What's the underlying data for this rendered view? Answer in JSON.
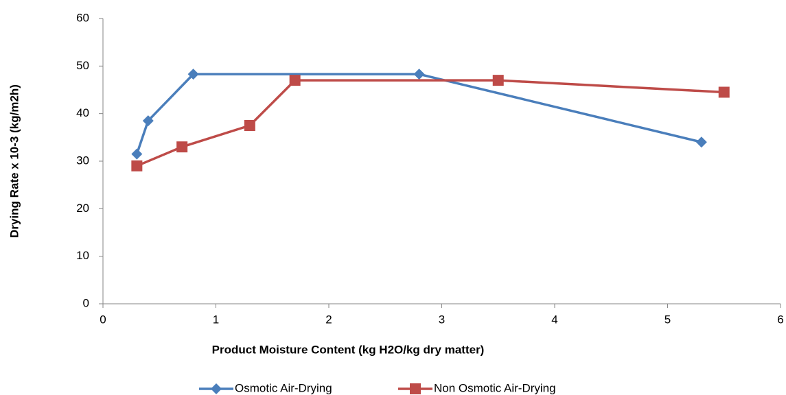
{
  "chart_data": {
    "type": "line",
    "x_label": "Product Moisture Content (kg H2O/kg dry matter)",
    "y_label": "Drying Rate x 10-3 (kg/m2h)",
    "xlim": [
      0,
      6
    ],
    "xticks": [
      0,
      1,
      2,
      3,
      4,
      5,
      6
    ],
    "ylim": [
      0,
      60
    ],
    "yticks": [
      0,
      10,
      20,
      30,
      40,
      50,
      60
    ],
    "grid": false,
    "legend": "bottom",
    "series": [
      {
        "name": "Osmotic Air-Drying",
        "color": "#4a7ebb",
        "marker": "diamond",
        "x": [
          0.3,
          0.4,
          0.8,
          2.8,
          5.3
        ],
        "values": [
          31.5,
          38.5,
          48.3,
          48.3,
          34
        ]
      },
      {
        "name": "Non Osmotic Air-Drying",
        "color": "#be4b48",
        "marker": "square",
        "x": [
          0.3,
          0.7,
          1.3,
          1.7,
          3.5,
          5.5
        ],
        "values": [
          29,
          33,
          37.5,
          47,
          47,
          44.5
        ]
      }
    ]
  }
}
